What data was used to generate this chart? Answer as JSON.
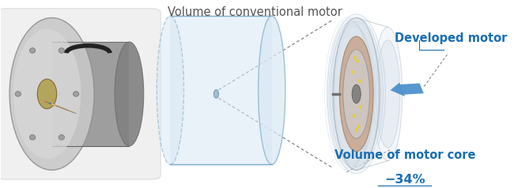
{
  "background_color": "#ffffff",
  "cylinder_label": "Volume of conventional motor",
  "cylinder_label_color": "#555555",
  "cylinder_label_fontsize": 10.5,
  "cylinder_fill": "#d8e8f4",
  "cylinder_edge": "#7aaac8",
  "cylinder_alpha": 0.55,
  "developed_motor_label": "Developed motor",
  "developed_motor_label_color": "#1a6eb5",
  "developed_motor_label_fontsize": 10.5,
  "volume_label_line1": "Volume of motor core",
  "volume_label_line2": "−34%",
  "volume_label_color": "#1a6eb5",
  "volume_label_fontsize": 10.5,
  "arrow_color": "#3a85c8",
  "dashed_line_color": "#666666",
  "fig_width": 6.5,
  "fig_height": 2.38,
  "dpi": 100
}
